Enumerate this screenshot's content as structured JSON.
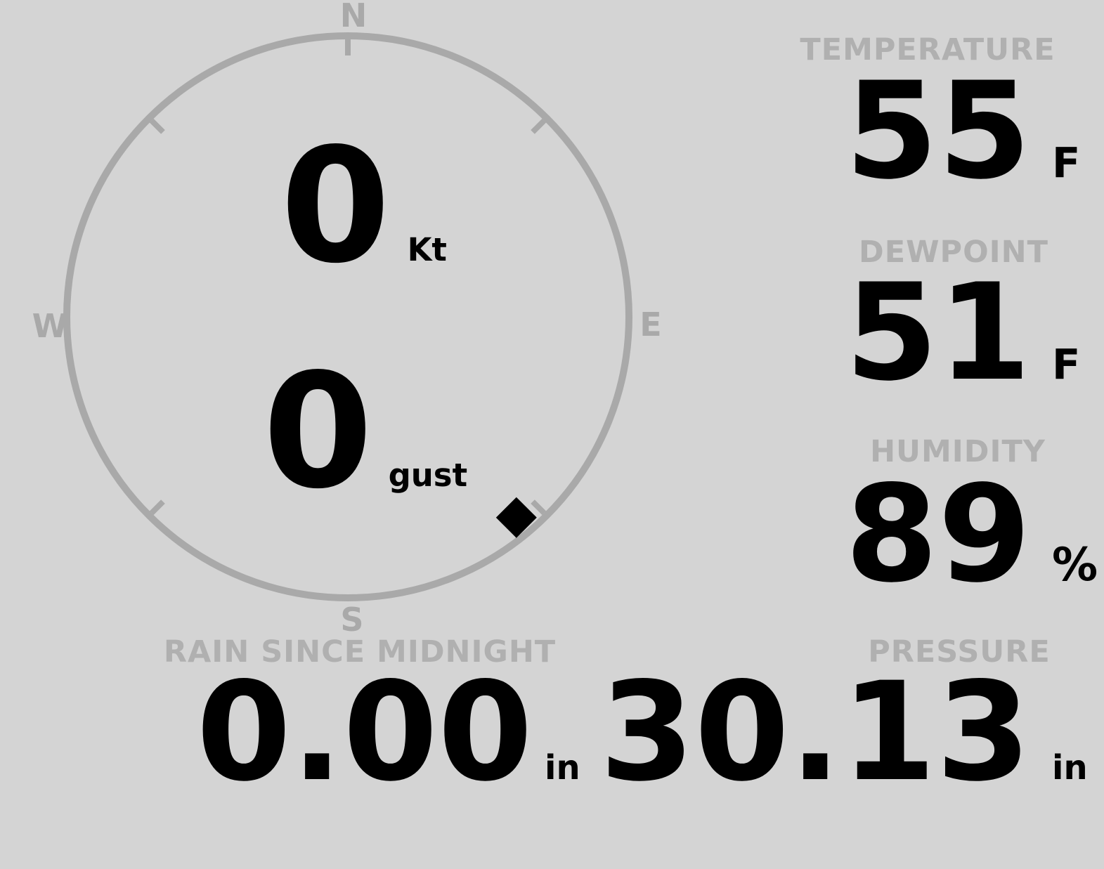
{
  "theme": {
    "background": "#d4d4d4",
    "compass_color": "#a9a9a9",
    "label_color": "#b0b0b0",
    "value_color": "#000000"
  },
  "compass": {
    "north": "N",
    "south": "S",
    "east": "E",
    "west": "W",
    "wind_speed": "0",
    "wind_speed_unit": "Kt",
    "wind_gust": "0",
    "wind_gust_unit": "gust",
    "direction_deg": 140
  },
  "temperature": {
    "label": "TEMPERATURE",
    "value": "55",
    "unit": "F"
  },
  "dewpoint": {
    "label": "DEWPOINT",
    "value": "51",
    "unit": "F"
  },
  "humidity": {
    "label": "HUMIDITY",
    "value": "89",
    "unit": "%"
  },
  "rain": {
    "label": "RAIN SINCE MIDNIGHT",
    "value": "0.00",
    "unit": "in"
  },
  "pressure": {
    "label": "PRESSURE",
    "value": "30.13",
    "unit": "in"
  }
}
